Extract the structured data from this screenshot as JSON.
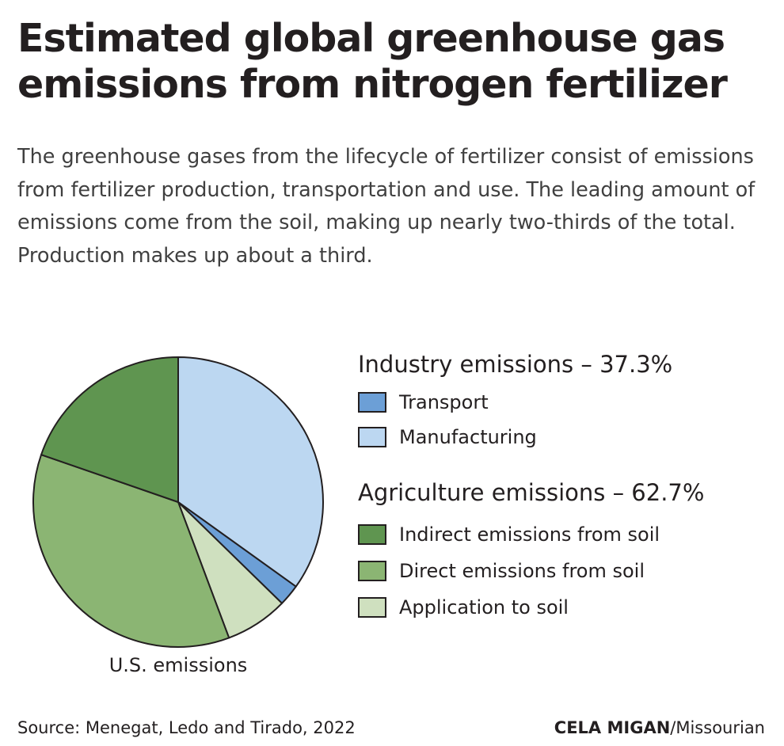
{
  "title": "Estimated global greenhouse gas emissions from nitrogen fertilizer",
  "subtitle": "The greenhouse gases from the lifecycle of fertilizer consist of emissions from fertilizer production, transportation and use. The leading amount of emissions come from the soil, making up nearly two-thirds of the total. Production makes up about a third.",
  "chart_data": {
    "type": "pie",
    "caption": "U.S. emissions",
    "slices": [
      {
        "label": "Manufacturing",
        "value": 34.9,
        "color": "#bcd7f1"
      },
      {
        "label": "Transport",
        "value": 2.4,
        "color": "#6c9fd6"
      },
      {
        "label": "Application to soil",
        "value": 7.0,
        "color": "#cfe0bf"
      },
      {
        "label": "Direct emissions from soil",
        "value": 36.0,
        "color": "#8bb573"
      },
      {
        "label": "Indirect emissions from soil",
        "value": 19.7,
        "color": "#5f9550"
      }
    ],
    "legend_groups": [
      {
        "title": "Industry emissions – 37.3%",
        "items": [
          {
            "label": "Transport",
            "color": "#6c9fd6"
          },
          {
            "label": "Manufacturing",
            "color": "#bcd7f1"
          }
        ]
      },
      {
        "title": "Agriculture emissions – 62.7%",
        "items": [
          {
            "label": "Indirect emissions from soil",
            "color": "#5f9550"
          },
          {
            "label": "Direct emissions from soil",
            "color": "#8bb573"
          },
          {
            "label": "Application to soil",
            "color": "#cfe0bf"
          }
        ]
      }
    ]
  },
  "footer": {
    "source": "Source: Menegat, Ledo and Tirado, 2022",
    "credit_name": "CELA MIGAN",
    "credit_org": "/Missourian"
  }
}
